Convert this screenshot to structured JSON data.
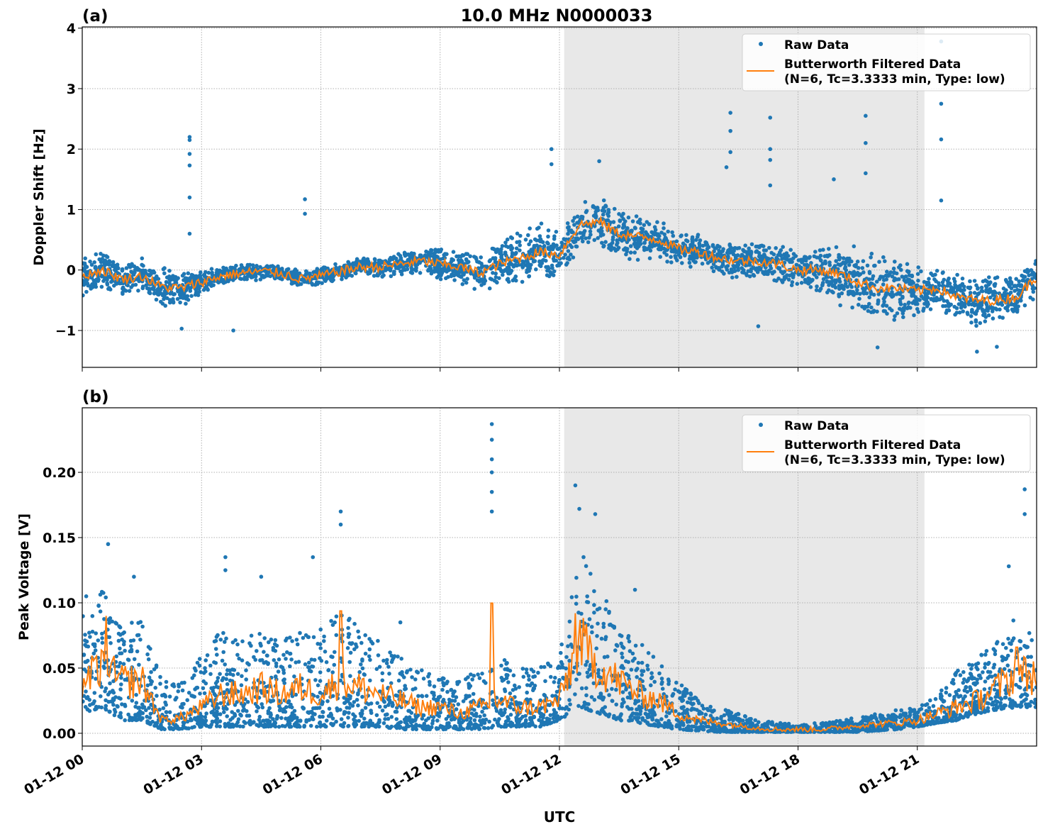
{
  "title": "10.0 MHz N0000033",
  "xlabel": "UTC",
  "colors": {
    "raw": "#1f77b4",
    "filtered": "#ff7f0e",
    "shade": "#e8e8e8",
    "grid": "#b0b0b0"
  },
  "legend": {
    "raw": "Raw Data",
    "filtered_line1": "Butterworth Filtered Data",
    "filtered_line2": "(N=6, Tc=3.3333 min, Type: low)",
    "placement": "upper-right"
  },
  "x_ticks": [
    {
      "hour": 0,
      "label": "01-12 00"
    },
    {
      "hour": 3,
      "label": "01-12 03"
    },
    {
      "hour": 6,
      "label": "01-12 06"
    },
    {
      "hour": 9,
      "label": "01-12 09"
    },
    {
      "hour": 12,
      "label": "01-12 12"
    },
    {
      "hour": 15,
      "label": "01-12 15"
    },
    {
      "hour": 18,
      "label": "01-12 18"
    },
    {
      "hour": 21,
      "label": "01-12 21"
    }
  ],
  "chart_data": [
    {
      "type": "scatter",
      "panel_label": "(a)",
      "ylabel": "Doppler Shift [Hz]",
      "xlim_hours": [
        0,
        24
      ],
      "ylim": [
        -1.61,
        4.02
      ],
      "grid": true,
      "shaded_span_hours": [
        12.12,
        21.18
      ],
      "y_ticks": [
        {
          "v": -1,
          "label": "−1"
        },
        {
          "v": 0,
          "label": "0"
        },
        {
          "v": 1,
          "label": "1"
        },
        {
          "v": 2,
          "label": "2"
        },
        {
          "v": 3,
          "label": "3"
        },
        {
          "v": 4,
          "label": "4"
        }
      ],
      "x_step_hours": 0.5,
      "filtered": [
        -0.1,
        0.0,
        -0.15,
        -0.1,
        -0.28,
        -0.3,
        -0.2,
        -0.1,
        -0.05,
        -0.02,
        -0.05,
        -0.15,
        -0.1,
        -0.02,
        0.05,
        0.05,
        0.1,
        0.15,
        0.1,
        0.05,
        -0.05,
        0.1,
        0.2,
        0.3,
        0.25,
        0.75,
        0.8,
        0.6,
        0.55,
        0.5,
        0.35,
        0.3,
        0.2,
        0.15,
        0.15,
        0.1,
        0.0,
        0.0,
        -0.05,
        -0.2,
        -0.3,
        -0.3,
        -0.35,
        -0.3,
        -0.45,
        -0.5,
        -0.5,
        -0.45,
        -0.1
      ],
      "raw_band_halfwidth": [
        0.35,
        0.35,
        0.3,
        0.3,
        0.35,
        0.35,
        0.2,
        0.15,
        0.15,
        0.15,
        0.15,
        0.15,
        0.15,
        0.15,
        0.15,
        0.2,
        0.2,
        0.25,
        0.3,
        0.3,
        0.35,
        0.4,
        0.5,
        0.5,
        0.45,
        0.4,
        0.45,
        0.4,
        0.4,
        0.35,
        0.3,
        0.3,
        0.3,
        0.3,
        0.3,
        0.35,
        0.35,
        0.4,
        0.55,
        0.6,
        0.6,
        0.55,
        0.45,
        0.35,
        0.4,
        0.45,
        0.45,
        0.4,
        0.35
      ],
      "raw_outliers": [
        [
          2.7,
          2.2
        ],
        [
          2.7,
          2.15
        ],
        [
          2.7,
          1.92
        ],
        [
          2.7,
          1.73
        ],
        [
          2.7,
          1.2
        ],
        [
          2.7,
          0.6
        ],
        [
          5.6,
          1.17
        ],
        [
          5.6,
          0.93
        ],
        [
          11.8,
          2.0
        ],
        [
          11.8,
          1.75
        ],
        [
          13.0,
          1.8
        ],
        [
          16.3,
          2.6
        ],
        [
          16.3,
          2.3
        ],
        [
          16.3,
          1.95
        ],
        [
          16.2,
          1.7
        ],
        [
          17.3,
          2.52
        ],
        [
          17.3,
          2.0
        ],
        [
          17.3,
          1.82
        ],
        [
          17.3,
          1.4
        ],
        [
          18.9,
          1.5
        ],
        [
          19.7,
          2.55
        ],
        [
          19.7,
          2.1
        ],
        [
          19.7,
          1.6
        ],
        [
          21.6,
          3.78
        ],
        [
          21.6,
          2.75
        ],
        [
          21.6,
          2.16
        ],
        [
          21.6,
          1.15
        ],
        [
          3.8,
          -1.0
        ],
        [
          2.5,
          -0.97
        ],
        [
          17.0,
          -0.93
        ],
        [
          20.0,
          -1.28
        ],
        [
          22.5,
          -1.35
        ],
        [
          23.0,
          -1.27
        ]
      ]
    },
    {
      "type": "scatter",
      "panel_label": "(b)",
      "ylabel": "Peak Voltage [V]",
      "xlim_hours": [
        0,
        24
      ],
      "ylim": [
        -0.0098,
        0.2495
      ],
      "grid": true,
      "shaded_span_hours": [
        12.12,
        21.18
      ],
      "y_ticks": [
        {
          "v": 0,
          "label": "0.00"
        },
        {
          "v": 0.05,
          "label": "0.05"
        },
        {
          "v": 0.1,
          "label": "0.10"
        },
        {
          "v": 0.15,
          "label": "0.15"
        },
        {
          "v": 0.2,
          "label": "0.20"
        }
      ],
      "x_step_hours": 0.5,
      "filtered": [
        0.04,
        0.05,
        0.04,
        0.04,
        0.01,
        0.012,
        0.02,
        0.03,
        0.03,
        0.035,
        0.03,
        0.035,
        0.03,
        0.04,
        0.035,
        0.03,
        0.025,
        0.02,
        0.02,
        0.015,
        0.02,
        0.025,
        0.02,
        0.02,
        0.025,
        0.07,
        0.05,
        0.04,
        0.03,
        0.025,
        0.015,
        0.01,
        0.008,
        0.006,
        0.004,
        0.003,
        0.003,
        0.003,
        0.004,
        0.006,
        0.007,
        0.008,
        0.01,
        0.015,
        0.02,
        0.025,
        0.035,
        0.045,
        0.045
      ],
      "filtered_peaks": [
        [
          0.6,
          0.09
        ],
        [
          6.5,
          0.125
        ],
        [
          10.3,
          0.133
        ],
        [
          12.4,
          0.092
        ],
        [
          23.5,
          0.088
        ]
      ],
      "raw_low": [
        0.015,
        0.02,
        0.01,
        0.01,
        0.003,
        0.003,
        0.005,
        0.005,
        0.005,
        0.005,
        0.005,
        0.005,
        0.005,
        0.005,
        0.005,
        0.005,
        0.003,
        0.003,
        0.003,
        0.003,
        0.003,
        0.005,
        0.005,
        0.005,
        0.01,
        0.02,
        0.015,
        0.01,
        0.008,
        0.005,
        0.003,
        0.002,
        0.001,
        0.001,
        0.001,
        0.001,
        0.001,
        0.001,
        0.001,
        0.001,
        0.002,
        0.003,
        0.005,
        0.008,
        0.01,
        0.015,
        0.018,
        0.02,
        0.02
      ],
      "raw_high": [
        0.09,
        0.11,
        0.08,
        0.09,
        0.04,
        0.04,
        0.06,
        0.08,
        0.07,
        0.08,
        0.07,
        0.08,
        0.08,
        0.1,
        0.08,
        0.07,
        0.06,
        0.05,
        0.045,
        0.04,
        0.05,
        0.06,
        0.05,
        0.05,
        0.06,
        0.14,
        0.12,
        0.08,
        0.07,
        0.06,
        0.04,
        0.025,
        0.02,
        0.015,
        0.01,
        0.008,
        0.007,
        0.008,
        0.01,
        0.012,
        0.015,
        0.018,
        0.02,
        0.03,
        0.05,
        0.06,
        0.07,
        0.09,
        0.08
      ],
      "raw_outliers": [
        [
          10.3,
          0.237
        ],
        [
          10.3,
          0.225
        ],
        [
          10.3,
          0.21
        ],
        [
          10.3,
          0.2
        ],
        [
          10.3,
          0.185
        ],
        [
          10.3,
          0.17
        ],
        [
          6.5,
          0.17
        ],
        [
          6.5,
          0.16
        ],
        [
          12.4,
          0.19
        ],
        [
          12.5,
          0.172
        ],
        [
          12.9,
          0.168
        ],
        [
          23.7,
          0.187
        ],
        [
          23.7,
          0.168
        ],
        [
          23.3,
          0.128
        ],
        [
          0.65,
          0.145
        ],
        [
          3.6,
          0.135
        ],
        [
          3.6,
          0.125
        ],
        [
          5.8,
          0.135
        ],
        [
          13.9,
          0.11
        ],
        [
          4.5,
          0.12
        ],
        [
          1.3,
          0.12
        ],
        [
          8.0,
          0.085
        ],
        [
          0.1,
          0.105
        ]
      ]
    }
  ]
}
